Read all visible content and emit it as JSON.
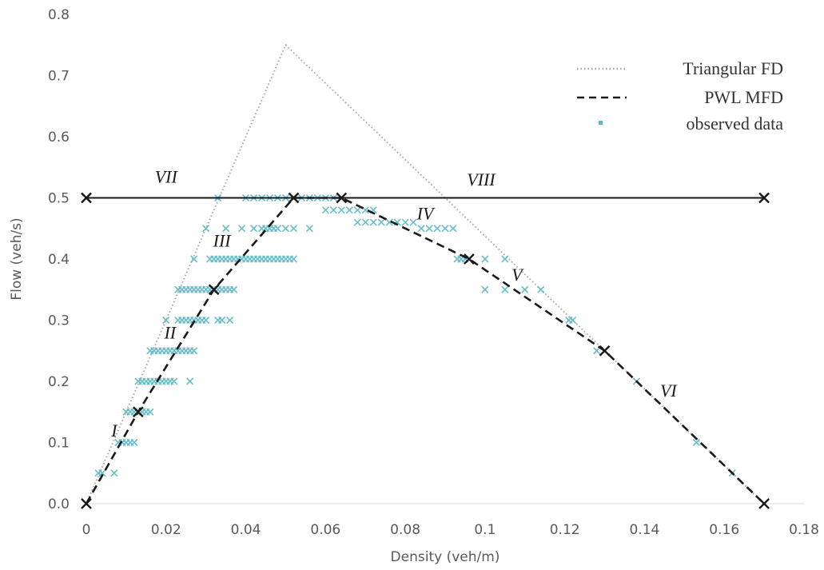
{
  "chart_data": {
    "type": "scatter",
    "title": "",
    "xlabel": "Density (veh/m)",
    "ylabel": "Flow (veh/s)",
    "xlim": [
      0,
      0.18
    ],
    "ylim": [
      0,
      0.8
    ],
    "x_ticks": [
      0,
      0.02,
      0.04,
      0.06,
      0.08,
      0.1,
      0.12,
      0.14,
      0.16,
      0.18
    ],
    "x_tick_labels": [
      "0",
      "0.02",
      "0.04",
      "0.06",
      "0.08",
      "0.1",
      "0.12",
      "0.14",
      "0.16",
      "0.18"
    ],
    "y_ticks": [
      0,
      0.1,
      0.2,
      0.3,
      0.4,
      0.5,
      0.6,
      0.7,
      0.8
    ],
    "y_tick_labels": [
      "0.0",
      "0.1",
      "0.2",
      "0.3",
      "0.4",
      "0.5",
      "0.6",
      "0.7",
      "0.8"
    ],
    "grid": false,
    "legend_position": "top-right",
    "series": [
      {
        "name": "Triangular FD",
        "style": "dotted",
        "color": "#a6a6a6",
        "points": [
          [
            0,
            0
          ],
          [
            0.05,
            0.75
          ],
          [
            0.17,
            0
          ]
        ]
      },
      {
        "name": "PWL MFD",
        "style": "dashed",
        "color": "#1a1a1a",
        "points": [
          [
            0,
            0
          ],
          [
            0.013,
            0.15
          ],
          [
            0.032,
            0.35
          ],
          [
            0.052,
            0.5
          ],
          [
            0.064,
            0.5
          ],
          [
            0.096,
            0.4
          ],
          [
            0.13,
            0.25
          ],
          [
            0.17,
            0
          ]
        ]
      },
      {
        "name": "observed data",
        "style": "markers",
        "color": "#5bb8c4",
        "points": [
          [
            0.003,
            0.05
          ],
          [
            0.004,
            0.05
          ],
          [
            0.007,
            0.05
          ],
          [
            0.008,
            0.1
          ],
          [
            0.009,
            0.1
          ],
          [
            0.01,
            0.1
          ],
          [
            0.011,
            0.1
          ],
          [
            0.012,
            0.1
          ],
          [
            0.01,
            0.15
          ],
          [
            0.011,
            0.15
          ],
          [
            0.012,
            0.15
          ],
          [
            0.013,
            0.15
          ],
          [
            0.014,
            0.15
          ],
          [
            0.015,
            0.15
          ],
          [
            0.016,
            0.15
          ],
          [
            0.013,
            0.2
          ],
          [
            0.014,
            0.2
          ],
          [
            0.015,
            0.2
          ],
          [
            0.016,
            0.2
          ],
          [
            0.017,
            0.2
          ],
          [
            0.018,
            0.2
          ],
          [
            0.019,
            0.2
          ],
          [
            0.02,
            0.2
          ],
          [
            0.021,
            0.2
          ],
          [
            0.022,
            0.2
          ],
          [
            0.026,
            0.2
          ],
          [
            0.016,
            0.25
          ],
          [
            0.017,
            0.25
          ],
          [
            0.018,
            0.25
          ],
          [
            0.019,
            0.25
          ],
          [
            0.02,
            0.25
          ],
          [
            0.021,
            0.25
          ],
          [
            0.022,
            0.25
          ],
          [
            0.023,
            0.25
          ],
          [
            0.024,
            0.25
          ],
          [
            0.025,
            0.25
          ],
          [
            0.026,
            0.25
          ],
          [
            0.027,
            0.25
          ],
          [
            0.02,
            0.3
          ],
          [
            0.023,
            0.3
          ],
          [
            0.024,
            0.3
          ],
          [
            0.025,
            0.3
          ],
          [
            0.026,
            0.3
          ],
          [
            0.027,
            0.3
          ],
          [
            0.028,
            0.3
          ],
          [
            0.029,
            0.3
          ],
          [
            0.03,
            0.3
          ],
          [
            0.033,
            0.3
          ],
          [
            0.034,
            0.3
          ],
          [
            0.036,
            0.3
          ],
          [
            0.023,
            0.35
          ],
          [
            0.024,
            0.35
          ],
          [
            0.025,
            0.35
          ],
          [
            0.026,
            0.35
          ],
          [
            0.027,
            0.35
          ],
          [
            0.028,
            0.35
          ],
          [
            0.029,
            0.35
          ],
          [
            0.03,
            0.35
          ],
          [
            0.031,
            0.35
          ],
          [
            0.032,
            0.35
          ],
          [
            0.033,
            0.35
          ],
          [
            0.034,
            0.35
          ],
          [
            0.035,
            0.35
          ],
          [
            0.036,
            0.35
          ],
          [
            0.037,
            0.35
          ],
          [
            0.027,
            0.4
          ],
          [
            0.031,
            0.4
          ],
          [
            0.032,
            0.4
          ],
          [
            0.033,
            0.4
          ],
          [
            0.034,
            0.4
          ],
          [
            0.035,
            0.4
          ],
          [
            0.036,
            0.4
          ],
          [
            0.037,
            0.4
          ],
          [
            0.038,
            0.4
          ],
          [
            0.039,
            0.4
          ],
          [
            0.04,
            0.4
          ],
          [
            0.041,
            0.4
          ],
          [
            0.042,
            0.4
          ],
          [
            0.043,
            0.4
          ],
          [
            0.044,
            0.4
          ],
          [
            0.045,
            0.4
          ],
          [
            0.046,
            0.4
          ],
          [
            0.047,
            0.4
          ],
          [
            0.048,
            0.4
          ],
          [
            0.049,
            0.4
          ],
          [
            0.05,
            0.4
          ],
          [
            0.051,
            0.4
          ],
          [
            0.052,
            0.4
          ],
          [
            0.093,
            0.4
          ],
          [
            0.094,
            0.4
          ],
          [
            0.095,
            0.4
          ],
          [
            0.1,
            0.4
          ],
          [
            0.105,
            0.4
          ],
          [
            0.03,
            0.45
          ],
          [
            0.035,
            0.45
          ],
          [
            0.039,
            0.45
          ],
          [
            0.042,
            0.45
          ],
          [
            0.044,
            0.45
          ],
          [
            0.045,
            0.45
          ],
          [
            0.046,
            0.45
          ],
          [
            0.047,
            0.45
          ],
          [
            0.048,
            0.45
          ],
          [
            0.05,
            0.45
          ],
          [
            0.052,
            0.45
          ],
          [
            0.056,
            0.45
          ],
          [
            0.084,
            0.45
          ],
          [
            0.086,
            0.45
          ],
          [
            0.088,
            0.45
          ],
          [
            0.09,
            0.45
          ],
          [
            0.092,
            0.45
          ],
          [
            0.068,
            0.46
          ],
          [
            0.07,
            0.46
          ],
          [
            0.072,
            0.46
          ],
          [
            0.074,
            0.46
          ],
          [
            0.076,
            0.46
          ],
          [
            0.078,
            0.46
          ],
          [
            0.08,
            0.46
          ],
          [
            0.082,
            0.46
          ],
          [
            0.06,
            0.48
          ],
          [
            0.062,
            0.48
          ],
          [
            0.064,
            0.48
          ],
          [
            0.066,
            0.48
          ],
          [
            0.068,
            0.48
          ],
          [
            0.07,
            0.48
          ],
          [
            0.072,
            0.48
          ],
          [
            0.033,
            0.5
          ],
          [
            0.04,
            0.5
          ],
          [
            0.042,
            0.5
          ],
          [
            0.044,
            0.5
          ],
          [
            0.046,
            0.5
          ],
          [
            0.048,
            0.5
          ],
          [
            0.05,
            0.5
          ],
          [
            0.052,
            0.5
          ],
          [
            0.054,
            0.5
          ],
          [
            0.056,
            0.5
          ],
          [
            0.058,
            0.5
          ],
          [
            0.06,
            0.5
          ],
          [
            0.062,
            0.5
          ],
          [
            0.1,
            0.35
          ],
          [
            0.105,
            0.35
          ],
          [
            0.11,
            0.35
          ],
          [
            0.114,
            0.35
          ],
          [
            0.121,
            0.3
          ],
          [
            0.122,
            0.3
          ],
          [
            0.128,
            0.25
          ],
          [
            0.13,
            0.25
          ],
          [
            0.138,
            0.2
          ],
          [
            0.153,
            0.1
          ],
          [
            0.162,
            0.05
          ]
        ]
      }
    ],
    "reference_line": {
      "y": 0.5,
      "x_start": 0,
      "x_end": 0.17,
      "color": "#1a1a1a"
    },
    "breakpoints": [
      [
        0,
        0
      ],
      [
        0.013,
        0.15
      ],
      [
        0.032,
        0.35
      ],
      [
        0.052,
        0.5
      ],
      [
        0.064,
        0.5
      ],
      [
        0.096,
        0.4
      ],
      [
        0.13,
        0.25
      ],
      [
        0.17,
        0
      ],
      [
        0,
        0.5
      ],
      [
        0.17,
        0.5
      ]
    ],
    "annotations": [
      {
        "text": "I",
        "x": 0.007,
        "y": 0.11
      },
      {
        "text": "II",
        "x": 0.021,
        "y": 0.27
      },
      {
        "text": "III",
        "x": 0.034,
        "y": 0.42
      },
      {
        "text": "IV",
        "x": 0.085,
        "y": 0.465
      },
      {
        "text": "V",
        "x": 0.108,
        "y": 0.365
      },
      {
        "text": "VI",
        "x": 0.146,
        "y": 0.175
      },
      {
        "text": "VII",
        "x": 0.02,
        "y": 0.525
      },
      {
        "text": "VIII",
        "x": 0.099,
        "y": 0.52
      }
    ]
  }
}
